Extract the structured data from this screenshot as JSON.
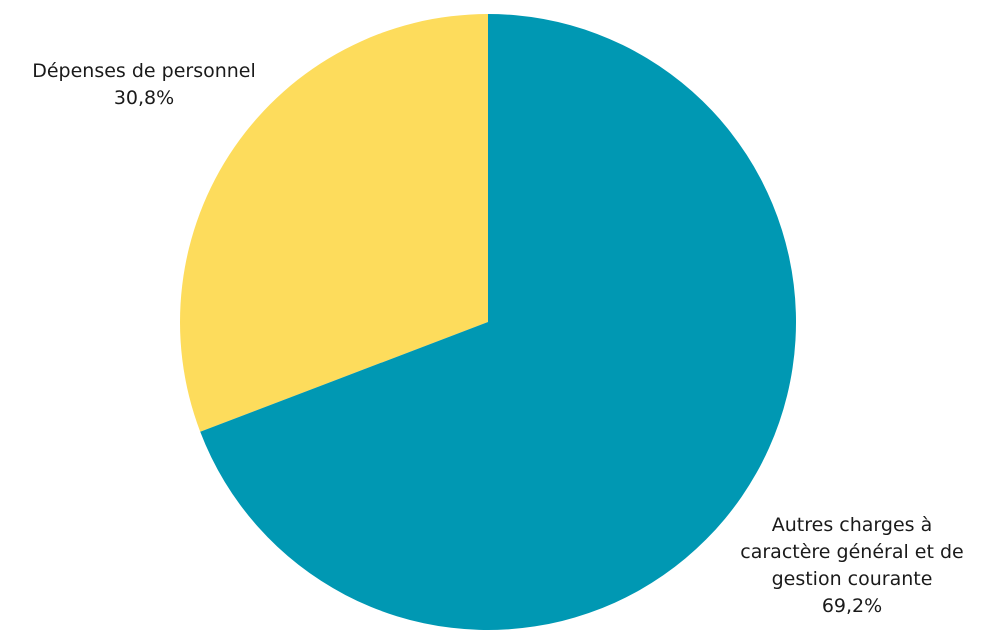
{
  "chart_data": {
    "type": "pie",
    "slices": [
      {
        "label_lines": [
          "Dépenses de personnel"
        ],
        "value": 30.8,
        "value_label": "30,8%",
        "color": "#fddc5c"
      },
      {
        "label_lines": [
          "Autres charges à",
          "caractère général et de",
          "gestion courante"
        ],
        "value": 69.2,
        "value_label": "69,2%",
        "color": "#0098b3"
      }
    ],
    "start_angle_deg": 0,
    "direction": "counterclockwise-from-top",
    "legend": "none"
  }
}
